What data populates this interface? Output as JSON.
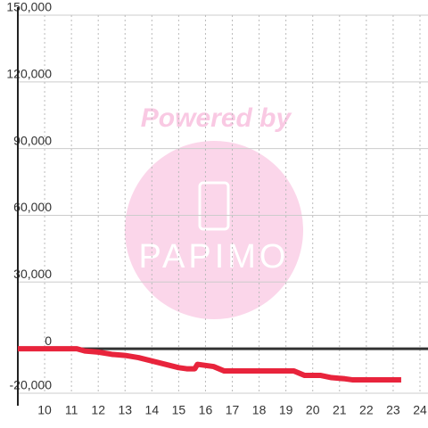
{
  "chart_data": {
    "type": "line",
    "watermark": {
      "line1": "Powered by",
      "line2": "PAPIMO"
    },
    "x": [
      9,
      11,
      11.2,
      11.5,
      12,
      12.5,
      13,
      13.5,
      14,
      14.5,
      15,
      15.3,
      15.6,
      15.7,
      16.3,
      16.7,
      19.3,
      19.7,
      20.3,
      20.7,
      21.2,
      21.5,
      23.3
    ],
    "series": [
      {
        "color": "#e8243c",
        "values": [
          0,
          0,
          0,
          -1000,
          -1500,
          -2500,
          -3000,
          -4000,
          -5500,
          -7000,
          -8500,
          -9000,
          -9000,
          -7000,
          -8000,
          -10000,
          -10000,
          -12000,
          -12000,
          -13000,
          -13500,
          -14000,
          -14000
        ]
      }
    ],
    "xlim": [
      9,
      24.3
    ],
    "xticks": [
      10,
      11,
      12,
      13,
      14,
      15,
      16,
      17,
      18,
      19,
      20,
      21,
      22,
      23,
      24
    ],
    "ylim": [
      -20000,
      150000
    ],
    "yticks": [
      {
        "value": -20000,
        "label": "-20,000"
      },
      0,
      {
        "value": 30000,
        "label": "30,000"
      },
      {
        "value": 60000,
        "label": "60,000"
      },
      {
        "value": 90000,
        "label": "90,000"
      },
      {
        "value": 120000,
        "label": "120,000"
      },
      {
        "value": 150000,
        "label": "150,000"
      }
    ],
    "grid": true
  }
}
